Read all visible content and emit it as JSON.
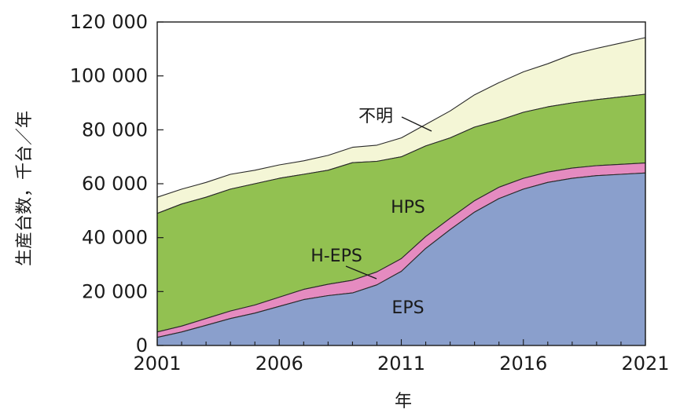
{
  "chart_data": {
    "type": "area",
    "stacked": true,
    "xlabel": "年",
    "ylabel": "生産台数，千台／年",
    "xlim": [
      2001,
      2021
    ],
    "ylim": [
      0,
      120000
    ],
    "x_ticks": [
      "2001",
      "2006",
      "2011",
      "2016",
      "2021"
    ],
    "y_ticks": [
      "0",
      "20 000",
      "40 000",
      "60 000",
      "80 000",
      "100 000",
      "120 000"
    ],
    "x": [
      2001,
      2002,
      2003,
      2004,
      2005,
      2006,
      2007,
      2008,
      2009,
      2010,
      2011,
      2012,
      2013,
      2014,
      2015,
      2016,
      2017,
      2018,
      2019,
      2020,
      2021
    ],
    "series": [
      {
        "name": "EPS",
        "color": "#8a9fcc",
        "values": [
          3000,
          5000,
          7500,
          10000,
          12000,
          14500,
          17000,
          18500,
          19500,
          22500,
          27500,
          36000,
          43000,
          49500,
          54500,
          58000,
          60500,
          62000,
          63000,
          63500,
          64000
        ]
      },
      {
        "name": "H-EPS",
        "color": "#e58bc0",
        "values": [
          2000,
          2200,
          2500,
          2800,
          3000,
          3400,
          3800,
          4200,
          4700,
          4800,
          4700,
          4400,
          4200,
          4200,
          4200,
          4000,
          3800,
          3800,
          3700,
          3700,
          3700
        ]
      },
      {
        "name": "HPS",
        "color": "#92c151",
        "values": [
          44000,
          45300,
          45000,
          45200,
          45000,
          44100,
          42700,
          42300,
          43600,
          41000,
          37800,
          33600,
          29800,
          27300,
          24800,
          24500,
          24200,
          24200,
          24500,
          25000,
          25500
        ]
      },
      {
        "name": "不明",
        "color": "#f4f6d6",
        "values": [
          6000,
          5500,
          5500,
          5500,
          5000,
          5000,
          5000,
          5500,
          5700,
          6000,
          7000,
          8000,
          10000,
          12000,
          14000,
          15000,
          16000,
          18000,
          19000,
          20000,
          21000
        ]
      }
    ]
  }
}
